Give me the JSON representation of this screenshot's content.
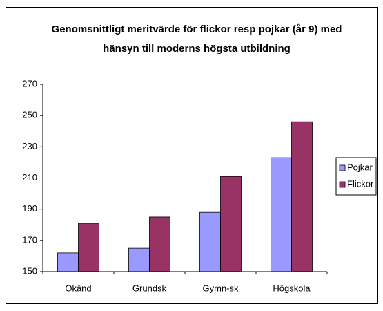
{
  "chart_data": {
    "type": "bar",
    "title": [
      "Genomsnittligt meritvärde för flickor resp pojkar (år 9) med",
      "hänsyn till moderns högsta utbildning"
    ],
    "categories": [
      "Okänd",
      "Grundsk",
      "Gymn-sk",
      "Högskola"
    ],
    "series": [
      {
        "name": "Pojkar",
        "color": "#9999ff",
        "values": [
          162,
          165,
          188,
          223
        ]
      },
      {
        "name": "Flickor",
        "color": "#993366",
        "values": [
          181,
          185,
          211,
          246
        ]
      }
    ],
    "ylim": [
      150,
      270
    ],
    "yticks": [
      150,
      170,
      190,
      210,
      230,
      250,
      270
    ],
    "grid": false,
    "legend": "right"
  }
}
